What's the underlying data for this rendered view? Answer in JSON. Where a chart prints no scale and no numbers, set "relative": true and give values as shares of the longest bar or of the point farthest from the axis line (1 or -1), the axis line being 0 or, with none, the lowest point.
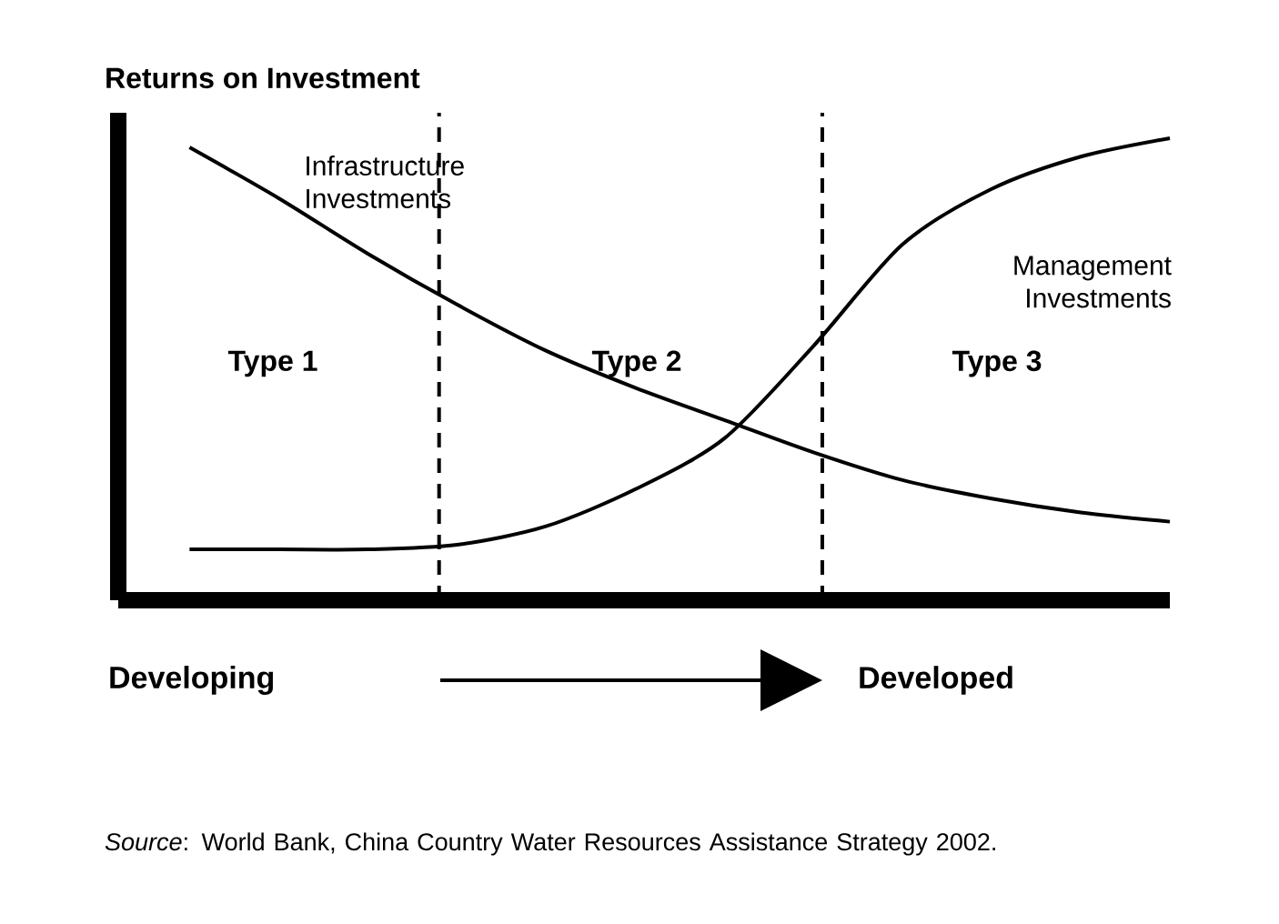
{
  "chart_data": {
    "type": "line",
    "title": "Returns on Investment",
    "relative": true,
    "legend": false,
    "categories": [
      null,
      null,
      null,
      null,
      null,
      null,
      null,
      null,
      null,
      null,
      null,
      null
    ],
    "series": [
      {
        "name": "Infrastructure Investments",
        "color": "#000000",
        "values": [
          0.98,
          0.87,
          0.75,
          0.64,
          0.54,
          0.46,
          0.39,
          0.32,
          0.26,
          0.22,
          0.19,
          0.17
        ]
      },
      {
        "name": "Management Investments",
        "color": "#000000",
        "values": [
          0.11,
          0.11,
          0.11,
          0.12,
          0.16,
          0.24,
          0.35,
          0.55,
          0.77,
          0.89,
          0.96,
          1.0
        ]
      }
    ],
    "annotations": [
      "Type 1",
      "Type 2",
      "Type 3",
      "Developing",
      "Developed",
      "*Source*: World Bank, China Country Water Resources Assistance Strategy 2002."
    ]
  }
}
